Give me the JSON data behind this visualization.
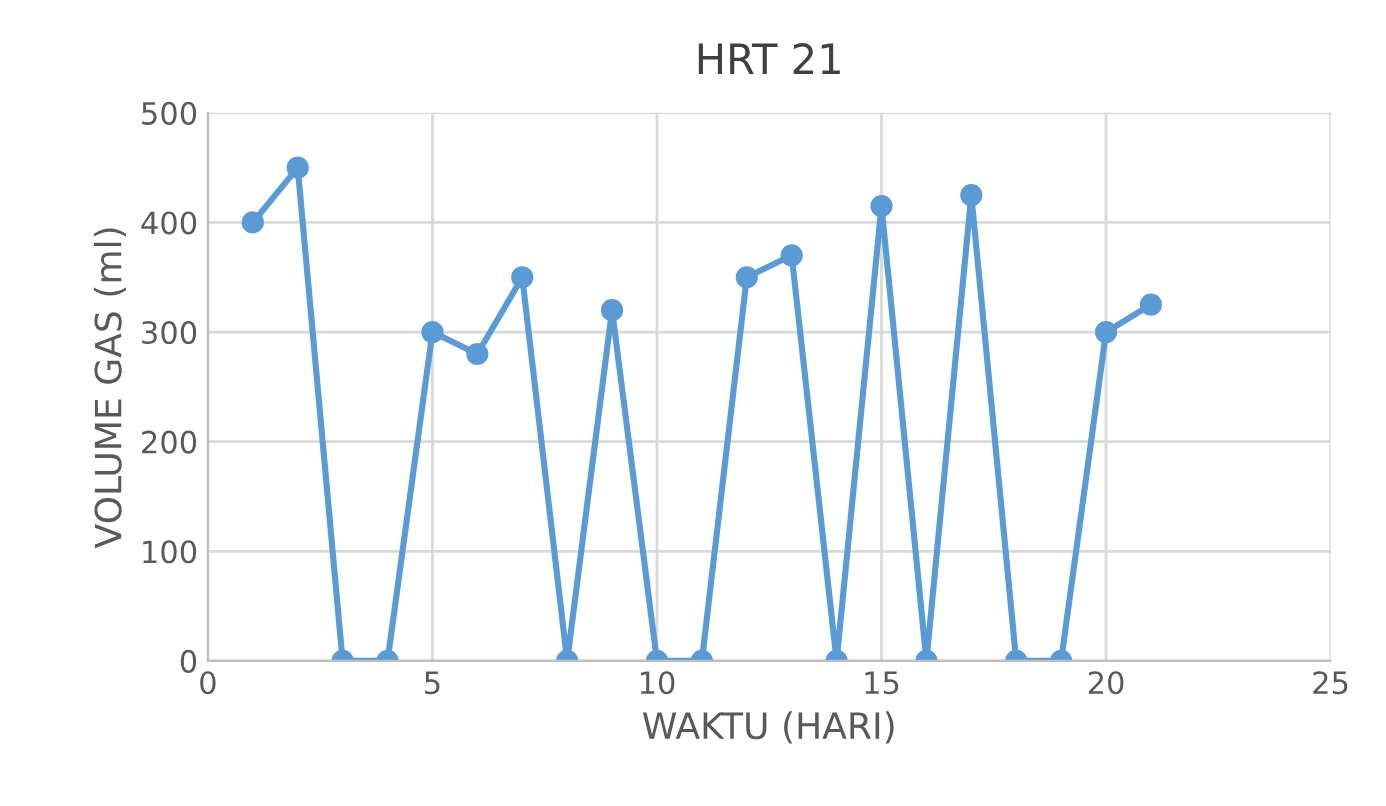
{
  "chart_data": {
    "type": "line",
    "title": "HRT 21",
    "xlabel": "WAKTU (HARI)",
    "ylabel": "VOLUME GAS (ml)",
    "x": [
      1,
      2,
      3,
      4,
      5,
      6,
      7,
      8,
      9,
      10,
      11,
      12,
      13,
      14,
      15,
      16,
      17,
      18,
      19,
      20,
      21
    ],
    "series": [
      {
        "color": "#5b9bd5",
        "values": [
          400,
          450,
          0,
          0,
          300,
          280,
          350,
          0,
          320,
          0,
          0,
          350,
          370,
          0,
          415,
          0,
          425,
          0,
          0,
          300,
          325
        ]
      }
    ],
    "xlim": [
      0,
      25
    ],
    "xticks": [
      0,
      5,
      10,
      15,
      20,
      25
    ],
    "ylim": [
      0,
      500
    ],
    "yticks": [
      0,
      100,
      200,
      300,
      400,
      500
    ],
    "grid": true,
    "marker": "circle",
    "line_style": "solid"
  }
}
